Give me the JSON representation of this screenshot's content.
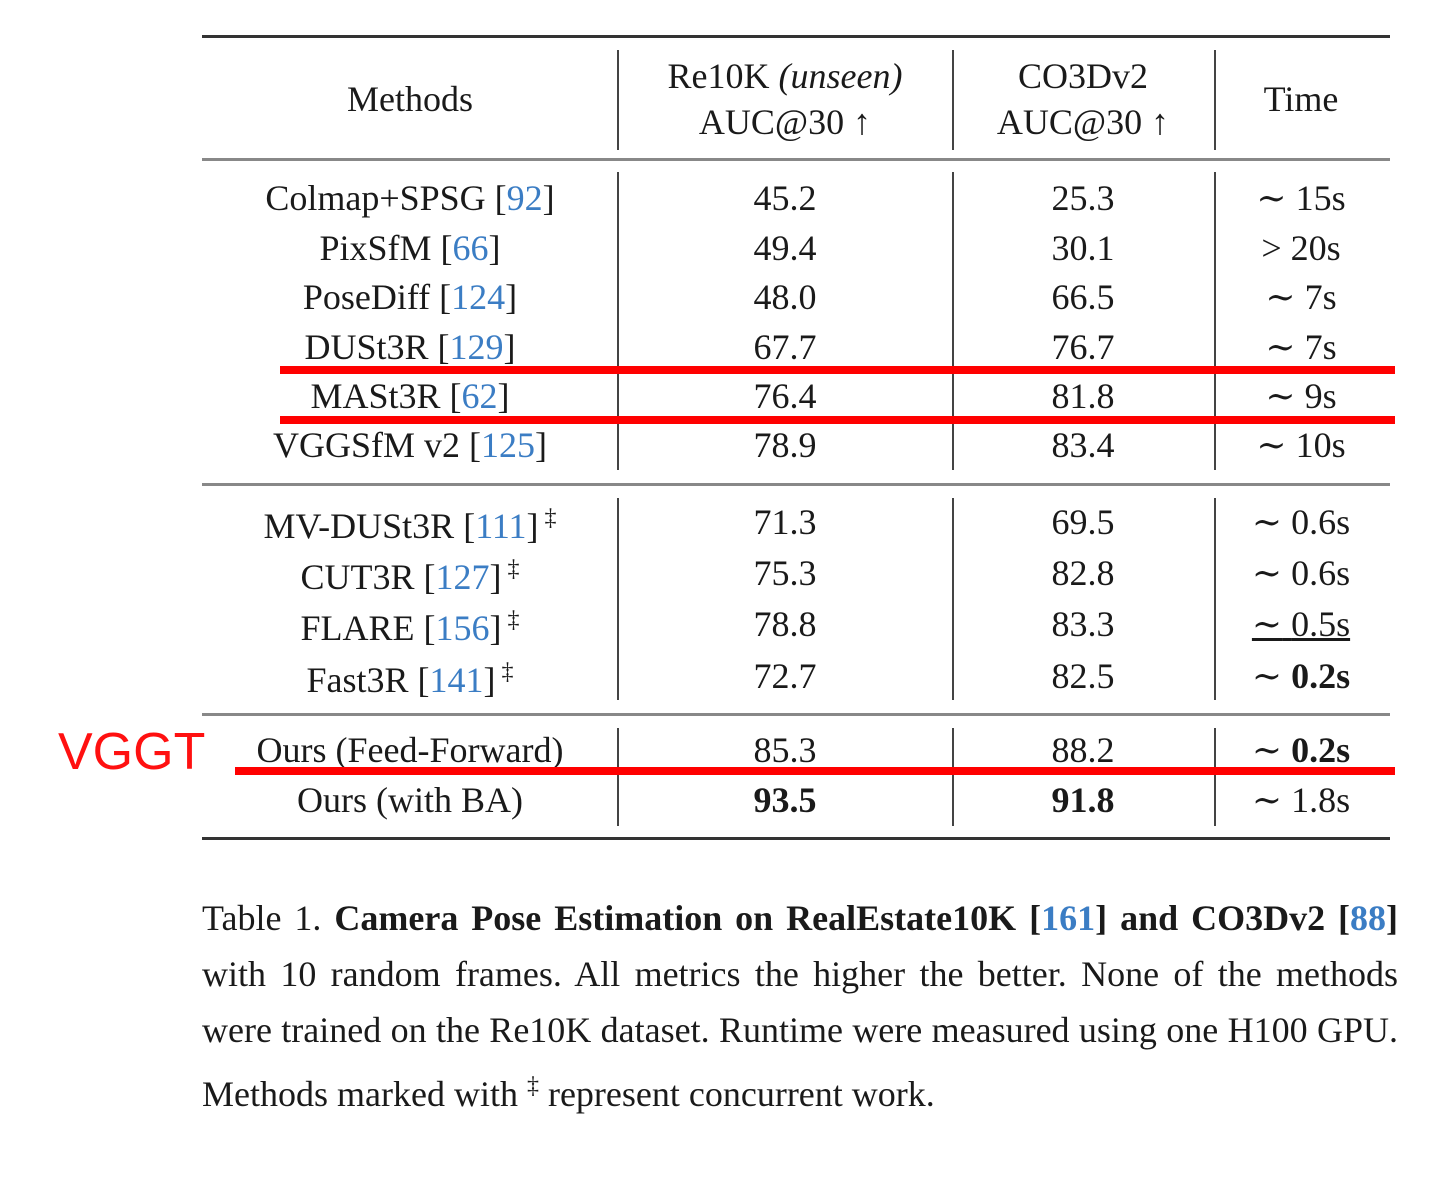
{
  "header": {
    "methods": "Methods",
    "re10k_line1": "Re10K",
    "re10k_unseen": "(unseen)",
    "re10k_line2": "AUC@30 ↑",
    "co3d_line1": "CO3Dv2",
    "co3d_line2": "AUC@30 ↑",
    "time": "Time"
  },
  "rows": [
    {
      "group": 0,
      "method": "Colmap+SPSG",
      "cite": "92",
      "dagger": "",
      "re10k": "45.2",
      "co3d": "25.3",
      "time_prefix": "∼",
      "time": "15s"
    },
    {
      "group": 0,
      "method": "PixSfM",
      "cite": "66",
      "dagger": "",
      "re10k": "49.4",
      "co3d": "30.1",
      "time_prefix": ">",
      "time": "20s"
    },
    {
      "group": 0,
      "method": "PoseDiff",
      "cite": "124",
      "dagger": "",
      "re10k": "48.0",
      "co3d": "66.5",
      "time_prefix": "∼",
      "time": "7s"
    },
    {
      "group": 0,
      "method": "DUSt3R",
      "cite": "129",
      "dagger": "",
      "re10k": "67.7",
      "co3d": "76.7",
      "time_prefix": "∼",
      "time": "7s"
    },
    {
      "group": 0,
      "method": "MASt3R",
      "cite": "62",
      "dagger": "",
      "re10k": "76.4",
      "co3d": "81.8",
      "time_prefix": "∼",
      "time": "9s"
    },
    {
      "group": 0,
      "method": "VGGSfM v2",
      "cite": "125",
      "dagger": "",
      "re10k": "78.9",
      "co3d": "83.4",
      "time_prefix": "∼",
      "time": "10s"
    },
    {
      "group": 1,
      "method": "MV-DUSt3R",
      "cite": "111",
      "dagger": "‡",
      "re10k": "71.3",
      "co3d": "69.5",
      "time_prefix": "∼",
      "time": "0.6s"
    },
    {
      "group": 1,
      "method": "CUT3R",
      "cite": "127",
      "dagger": "‡",
      "re10k": "75.3",
      "co3d": "82.8",
      "time_prefix": "∼",
      "time": "0.6s"
    },
    {
      "group": 1,
      "method": "FLARE",
      "cite": "156",
      "dagger": "‡",
      "re10k": "78.8",
      "co3d": "83.3",
      "time_prefix": "∼",
      "time": "0.5s",
      "time_style": "underline"
    },
    {
      "group": 1,
      "method": "Fast3R",
      "cite": "141",
      "dagger": "‡",
      "re10k": "72.7",
      "co3d": "82.5",
      "time_prefix": "∼",
      "time": "0.2s",
      "time_style": "bold"
    },
    {
      "group": 2,
      "method": "Ours (Feed-Forward)",
      "cite": "",
      "dagger": "",
      "re10k": "85.3",
      "co3d": "88.2",
      "time_prefix": "∼",
      "time": "0.2s",
      "time_style": "bold"
    },
    {
      "group": 2,
      "method": "Ours (with BA)",
      "cite": "",
      "dagger": "",
      "re10k": "93.5",
      "co3d": "91.8",
      "time_prefix": "∼",
      "time": "1.8s",
      "bold_scores": true
    }
  ],
  "annotation": {
    "label": "VGGT",
    "color": "#ff0000"
  },
  "caption": {
    "prefix": "Table 1.",
    "bold1": "Camera Pose Estimation on RealEstate10K",
    "cite1": "161",
    "bold2": "and CO3Dv2",
    "cite2": "88",
    "text1": "with 10 random frames. All metrics the higher the better. None of the methods were trained on the Re10K dataset. Runtime were measured using one H100 GPU. Methods marked with",
    "dagger": "‡",
    "text2": "represent concurrent work."
  },
  "colors": {
    "citation": "#3b7dc4",
    "annotation": "#ff0000"
  }
}
